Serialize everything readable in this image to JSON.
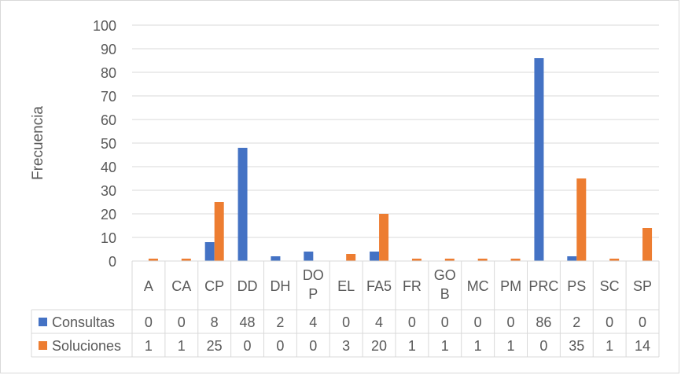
{
  "chart_data": {
    "type": "bar",
    "title": "",
    "xlabel": "",
    "ylabel": "Frecuencia",
    "ylim": [
      0,
      100
    ],
    "yticks": [
      0,
      10,
      20,
      30,
      40,
      50,
      60,
      70,
      80,
      90,
      100
    ],
    "grid": true,
    "legend": "data-table-left",
    "categories": [
      "A",
      "CA",
      "CP",
      "DD",
      "DH",
      "DOP",
      "EL",
      "FA5",
      "FR",
      "GOB",
      "MC",
      "PM",
      "PRC",
      "PS",
      "SC",
      "SP"
    ],
    "series": [
      {
        "name": "Consultas",
        "color": "#4472c4",
        "values": [
          0,
          0,
          8,
          48,
          2,
          4,
          0,
          4,
          0,
          0,
          0,
          0,
          86,
          2,
          0,
          0
        ]
      },
      {
        "name": "Soluciones",
        "color": "#ed7d31",
        "values": [
          1,
          1,
          25,
          0,
          0,
          0,
          3,
          20,
          1,
          1,
          1,
          1,
          0,
          35,
          1,
          14
        ]
      }
    ]
  }
}
